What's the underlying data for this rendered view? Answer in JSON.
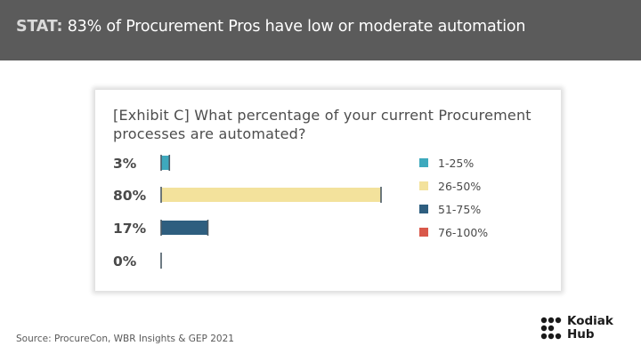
{
  "header": {
    "stat_label": "STAT:",
    "text": "83% of Procurement Pros have low or moderate automation"
  },
  "source": "Source: ProcureCon, WBR Insights & GEP 2021",
  "logo": {
    "line1": "Kodiak",
    "line2": "Hub"
  },
  "chart_data": {
    "type": "bar",
    "orientation": "horizontal",
    "title": "[Exhibit C] What percentage of your current Procurement processes are automated?",
    "categories": [
      "1-25%",
      "26-50%",
      "51-75%",
      "76-100%"
    ],
    "values": [
      3,
      80,
      17,
      0
    ],
    "value_labels": [
      "3%",
      "80%",
      "17%",
      "0%"
    ],
    "colors": [
      "#3ea9bd",
      "#f3e29c",
      "#2e5e7f",
      "#d9584a"
    ],
    "xlim": [
      0,
      80
    ],
    "grid": false,
    "legend": "right",
    "legend_entries": [
      "1-25%",
      "26-50%",
      "51-75%",
      "76-100%"
    ]
  }
}
